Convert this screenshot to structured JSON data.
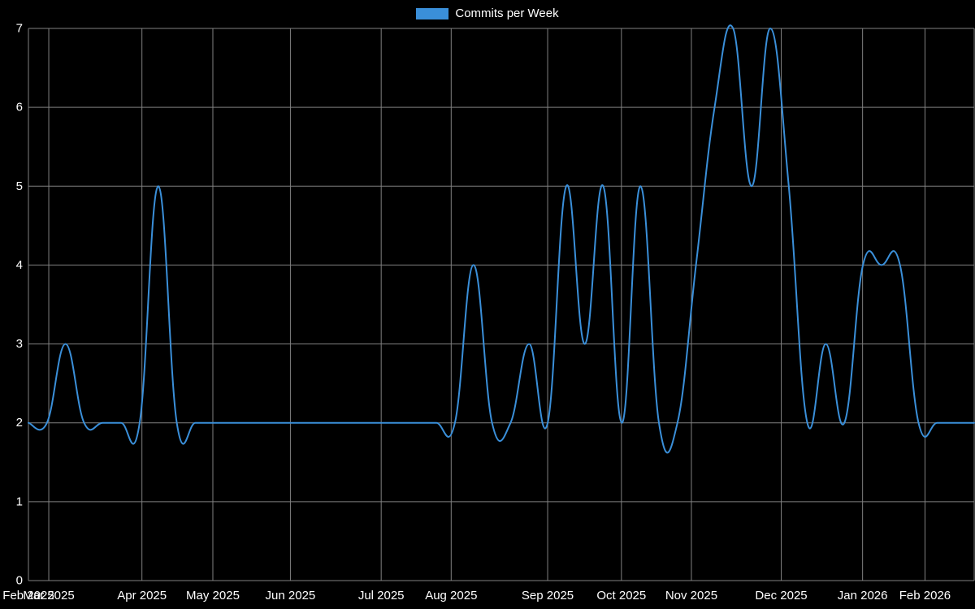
{
  "legend": {
    "label": "Commits per Week",
    "swatch_color": "#3a8fd9"
  },
  "chart_data": {
    "type": "line",
    "title": "Commits per Week",
    "xlabel": "",
    "ylabel": "",
    "ylim": [
      0,
      7
    ],
    "grid": true,
    "legend_position": "top-center",
    "background_color": "#000000",
    "grid_color": "#808080",
    "text_color": "#ffffff",
    "line_color": "#3a8fd9",
    "line_width": 2,
    "smoothing": 0.2,
    "y_ticks": [
      "0",
      "1",
      "2",
      "3",
      "4",
      "5",
      "6",
      "7"
    ],
    "x_ticks": [
      {
        "label": "Feb 2025",
        "pos": 0.0
      },
      {
        "label": "Mar 2025",
        "pos": 0.0215
      },
      {
        "label": "Apr 2025",
        "pos": 0.12
      },
      {
        "label": "May 2025",
        "pos": 0.195
      },
      {
        "label": "Jun 2025",
        "pos": 0.277
      },
      {
        "label": "Jul 2025",
        "pos": 0.373
      },
      {
        "label": "Aug 2025",
        "pos": 0.447
      },
      {
        "label": "Sep 2025",
        "pos": 0.549
      },
      {
        "label": "Oct 2025",
        "pos": 0.627
      },
      {
        "label": "Nov 2025",
        "pos": 0.701
      },
      {
        "label": "Dec 2025",
        "pos": 0.796
      },
      {
        "label": "Jan 2026",
        "pos": 0.882
      },
      {
        "label": "Feb 2026",
        "pos": 0.948
      }
    ],
    "series": [
      {
        "name": "Commits per Week",
        "x_unit": "week",
        "values": [
          2,
          2,
          3,
          2,
          2,
          2,
          2,
          5,
          2,
          2,
          2,
          2,
          2,
          2,
          2,
          2,
          2,
          2,
          2,
          2,
          2,
          2,
          2,
          2,
          4,
          2,
          2,
          3,
          2,
          5,
          3,
          5,
          2,
          5,
          2,
          2,
          4,
          6,
          7,
          5,
          7,
          5,
          2,
          3,
          2,
          4,
          4,
          4,
          2,
          2,
          2,
          2
        ]
      }
    ]
  }
}
